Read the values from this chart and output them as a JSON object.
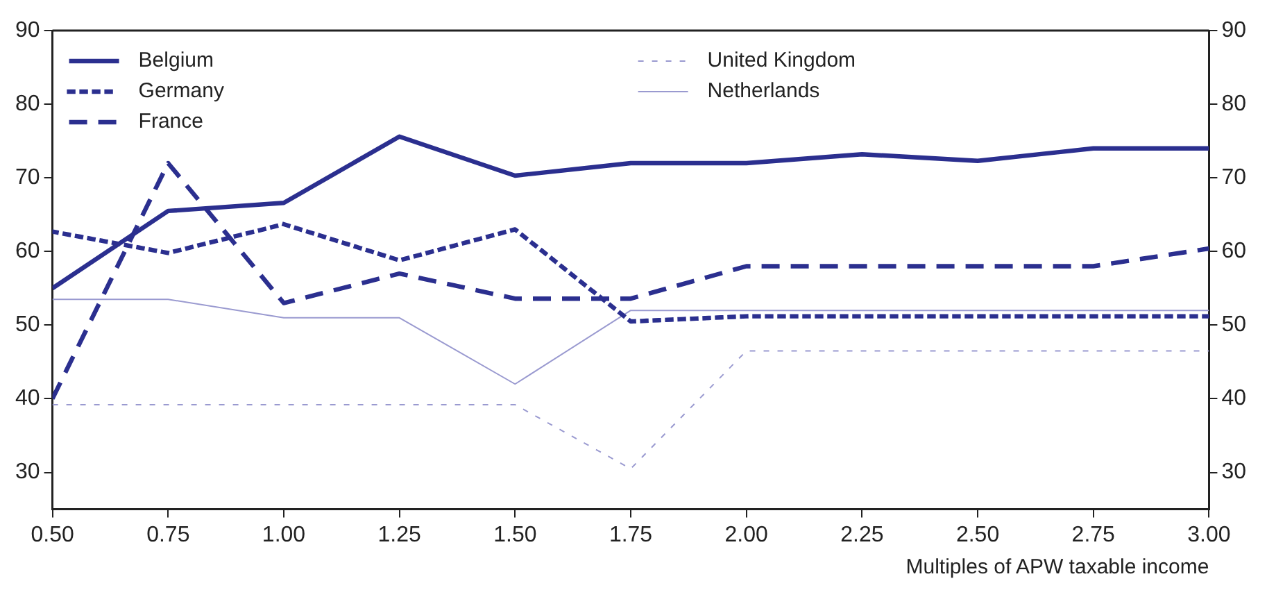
{
  "chart_data": {
    "type": "line",
    "xlabel": "Multiples of APW taxable income",
    "x": [
      0.5,
      0.75,
      1.0,
      1.25,
      1.5,
      1.75,
      2.0,
      2.25,
      2.5,
      2.75,
      3.0
    ],
    "series": [
      {
        "name": "Belgium",
        "color": "#2b2f8f",
        "line_style": "solid",
        "values": [
          55,
          65.5,
          66.6,
          75.6,
          70.3,
          72,
          72,
          73.2,
          72.3,
          74,
          74
        ]
      },
      {
        "name": "Germany",
        "color": "#2b2f8f",
        "line_style": "dotted",
        "values": [
          62.7,
          59.8,
          63.7,
          58.8,
          63,
          50.5,
          51.2,
          51.2,
          51.2,
          51.2,
          51.2
        ]
      },
      {
        "name": "France",
        "color": "#2b2f8f",
        "line_style": "dashed",
        "values": [
          40,
          72,
          53,
          57,
          53.6,
          53.6,
          58,
          58,
          58,
          58,
          60.4
        ]
      },
      {
        "name": "United Kingdom",
        "color": "#9a9ad0",
        "line_style": "dashed",
        "values": [
          39.2,
          39.2,
          39.2,
          39.2,
          39.2,
          30.5,
          46.5,
          46.5,
          46.5,
          46.5,
          46.5
        ]
      },
      {
        "name": "Netherlands",
        "color": "#9a9ad0",
        "line_style": "solid",
        "values": [
          53.5,
          53.5,
          51,
          51,
          42,
          52,
          52,
          52,
          52,
          52,
          52
        ]
      }
    ],
    "xlim": [
      0.5,
      3.0
    ],
    "xticks": [
      {
        "value": 0.5,
        "label": "0.50"
      },
      {
        "value": 0.75,
        "label": "0.75"
      },
      {
        "value": 1.0,
        "label": "1.00"
      },
      {
        "value": 1.25,
        "label": "1.25"
      },
      {
        "value": 1.5,
        "label": "1.50"
      },
      {
        "value": 1.75,
        "label": "1.75"
      },
      {
        "value": 2.0,
        "label": "2.00"
      },
      {
        "value": 2.25,
        "label": "2.25"
      },
      {
        "value": 2.5,
        "label": "2.50"
      },
      {
        "value": 2.75,
        "label": "2.75"
      },
      {
        "value": 3.0,
        "label": "3.00"
      }
    ],
    "ylim": [
      25,
      90
    ],
    "yticks": [
      30,
      40,
      50,
      60,
      70,
      80,
      90
    ],
    "y2lim": [
      25,
      90
    ],
    "y2ticks": [
      30,
      40,
      50,
      60,
      70,
      80,
      90
    ],
    "grid": false,
    "legend": "top",
    "marker": "none"
  }
}
